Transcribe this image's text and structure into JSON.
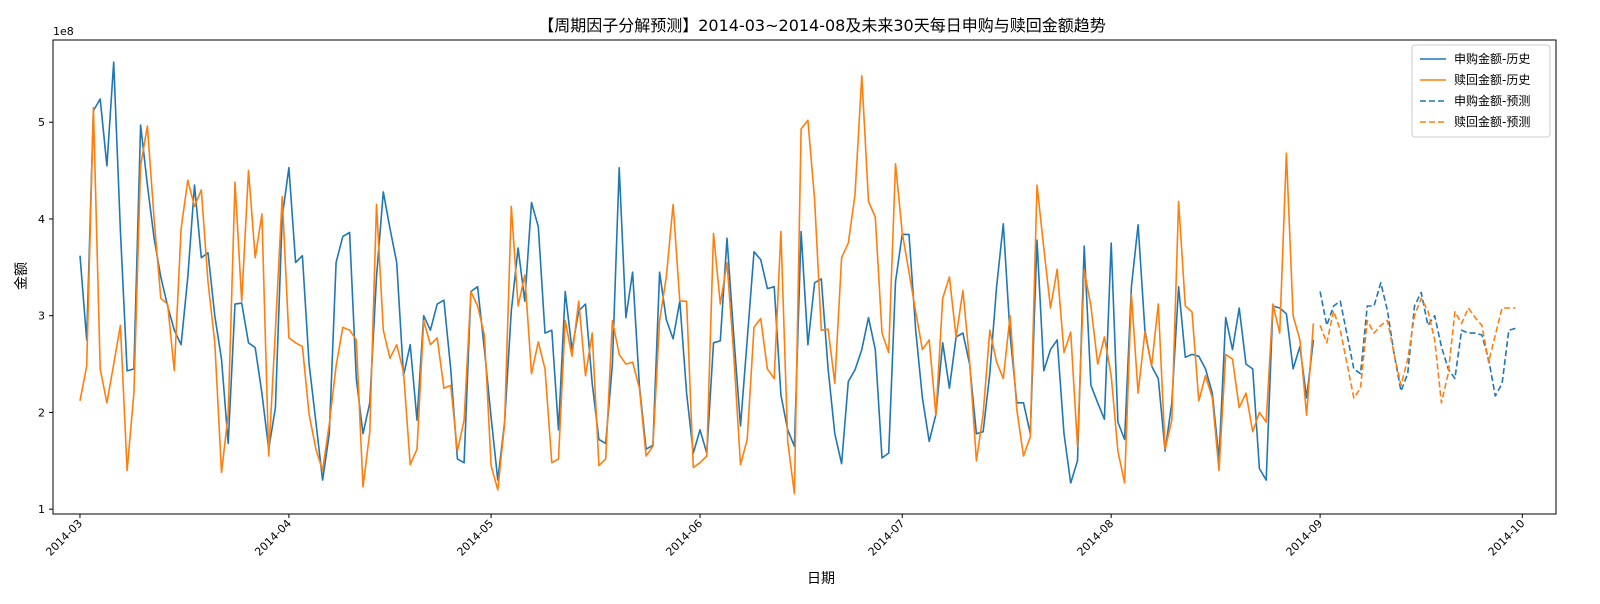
{
  "chart_data": {
    "type": "line",
    "title": "【周期因子分解预测】2014-03~2014-08及未来30天每日申购与赎回金额趋势",
    "xlabel": "日期",
    "ylabel": "金额",
    "y_offset_label": "1e8",
    "xlim": [
      "2014-02-25",
      "2014-10-06"
    ],
    "ylim": [
      0.95,
      5.85
    ],
    "y_ticks": [
      1,
      2,
      3,
      4,
      5
    ],
    "x_ticks": [
      "2014-03-01",
      "2014-04-01",
      "2014-05-01",
      "2014-06-01",
      "2014-07-01",
      "2014-08-01",
      "2014-09-01",
      "2014-10-01"
    ],
    "grid": false,
    "legend_position": "top-right",
    "colors": {
      "purchase": "#1f77b4",
      "redeem": "#ff7f0e"
    },
    "series": [
      {
        "name": "申购金额-历史",
        "style": "solid",
        "color": "#1f77b4",
        "start_date": "2014-03-01",
        "values": [
          3.62,
          2.75,
          5.12,
          5.24,
          4.55,
          5.62,
          3.88,
          2.43,
          2.45,
          4.97,
          4.35,
          3.8,
          3.4,
          3.1,
          2.85,
          2.7,
          3.4,
          4.35,
          3.6,
          3.65,
          3.0,
          2.55,
          1.68,
          3.12,
          3.13,
          2.72,
          2.67,
          2.2,
          1.62,
          2.05,
          4.02,
          4.53,
          3.55,
          3.62,
          2.5,
          1.9,
          1.3,
          1.78,
          3.55,
          3.82,
          3.86,
          2.35,
          1.78,
          2.1,
          3.4,
          4.28,
          3.9,
          3.55,
          2.38,
          2.7,
          1.92,
          3.0,
          2.85,
          3.12,
          3.16,
          2.45,
          1.52,
          1.48,
          3.25,
          3.3,
          2.65,
          1.95,
          1.3,
          1.9,
          3.05,
          3.7,
          3.15,
          4.17,
          3.92,
          2.82,
          2.85,
          1.82,
          3.25,
          2.65,
          3.05,
          3.12,
          2.3,
          1.72,
          1.68,
          2.5,
          4.53,
          2.98,
          3.45,
          2.28,
          1.62,
          1.66,
          3.45,
          2.96,
          2.76,
          3.15,
          2.2,
          1.58,
          1.82,
          1.58,
          2.72,
          2.74,
          3.8,
          2.8,
          1.86,
          2.75,
          3.66,
          3.58,
          3.28,
          3.3,
          2.18,
          1.82,
          1.65,
          3.87,
          2.7,
          3.34,
          3.38,
          2.45,
          1.78,
          1.47,
          2.32,
          2.44,
          2.65,
          2.98,
          2.65,
          1.53,
          1.58,
          3.35,
          3.84,
          3.84,
          2.85,
          2.15,
          1.7,
          1.98,
          2.72,
          2.25,
          2.78,
          2.82,
          2.5,
          1.78,
          1.8,
          2.4,
          3.3,
          3.95,
          2.8,
          2.1,
          2.1,
          1.78,
          3.78,
          2.43,
          2.65,
          2.75,
          1.78,
          1.27,
          1.5,
          3.72,
          2.28,
          2.1,
          1.93,
          3.75,
          1.9,
          1.72,
          3.3,
          3.94,
          2.85,
          2.48,
          2.35,
          1.6,
          2.1,
          3.3,
          2.57,
          2.6,
          2.58,
          2.45,
          2.2,
          1.52,
          2.98,
          2.65,
          3.08,
          2.5,
          2.45,
          1.42,
          1.3,
          3.1,
          3.08,
          3.02,
          2.45,
          2.68,
          2.15,
          2.75
        ]
      },
      {
        "name": "赎回金额-历史",
        "style": "solid",
        "color": "#ff7f0e",
        "start_date": "2014-03-01",
        "values": [
          2.12,
          2.48,
          5.15,
          2.45,
          2.1,
          2.5,
          2.9,
          1.4,
          2.2,
          4.55,
          4.96,
          4.0,
          3.18,
          3.12,
          2.43,
          3.9,
          4.4,
          4.13,
          4.3,
          3.35,
          2.72,
          1.38,
          1.98,
          4.38,
          3.15,
          4.5,
          3.6,
          4.05,
          1.55,
          2.85,
          4.23,
          2.77,
          2.72,
          2.68,
          1.98,
          1.62,
          1.4,
          1.88,
          2.48,
          2.88,
          2.85,
          2.75,
          1.23,
          1.8,
          4.15,
          2.85,
          2.56,
          2.7,
          2.42,
          1.46,
          1.62,
          2.95,
          2.7,
          2.77,
          2.25,
          2.28,
          1.6,
          1.92,
          3.25,
          3.1,
          2.8,
          1.45,
          1.2,
          1.88,
          4.13,
          3.1,
          3.42,
          2.4,
          2.73,
          2.45,
          1.48,
          1.52,
          2.95,
          2.58,
          3.15,
          2.38,
          2.82,
          1.45,
          1.52,
          2.95,
          2.6,
          2.5,
          2.52,
          2.25,
          1.55,
          1.65,
          2.95,
          3.4,
          4.15,
          3.15,
          3.15,
          1.43,
          1.48,
          1.55,
          3.85,
          3.12,
          3.55,
          2.6,
          1.46,
          1.72,
          2.88,
          2.97,
          2.45,
          2.35,
          3.87,
          1.7,
          1.16,
          4.93,
          5.02,
          4.2,
          2.85,
          2.86,
          2.3,
          3.6,
          3.75,
          4.25,
          5.48,
          4.18,
          4.02,
          2.82,
          2.62,
          4.57,
          3.86,
          3.45,
          3.04,
          2.65,
          2.75,
          1.97,
          3.18,
          3.4,
          2.78,
          3.26,
          2.53,
          1.5,
          1.98,
          2.85,
          2.52,
          2.35,
          3.0,
          2.03,
          1.55,
          1.75,
          4.35,
          3.7,
          3.08,
          3.48,
          2.62,
          2.83,
          1.65,
          3.47,
          3.1,
          2.5,
          2.78,
          2.38,
          1.6,
          1.27,
          3.22,
          2.2,
          2.83,
          2.48,
          3.12,
          1.62,
          1.92,
          4.18,
          3.1,
          3.04,
          2.12,
          2.38,
          2.15,
          1.4,
          2.6,
          2.55,
          2.05,
          2.2,
          1.8,
          2.0,
          1.9,
          3.12,
          2.82,
          4.68,
          3.0,
          2.75,
          1.97,
          2.92
        ]
      },
      {
        "name": "申购金额-预测",
        "style": "dashed",
        "color": "#1f77b4",
        "start_date": "2014-09-01",
        "values": [
          3.25,
          2.9,
          3.1,
          3.15,
          2.8,
          2.45,
          2.4,
          3.1,
          3.1,
          3.34,
          3.05,
          2.6,
          2.22,
          2.4,
          3.1,
          3.24,
          2.9,
          3.0,
          2.68,
          2.45,
          2.35,
          2.85,
          2.82,
          2.82,
          2.8,
          2.55,
          2.17,
          2.3,
          2.85,
          2.87
        ]
      },
      {
        "name": "赎回金额-预测",
        "style": "dashed",
        "color": "#ff7f0e",
        "start_date": "2014-09-01",
        "values": [
          2.9,
          2.72,
          3.05,
          2.85,
          2.5,
          2.15,
          2.25,
          2.95,
          2.82,
          2.9,
          2.95,
          2.6,
          2.28,
          2.55,
          3.0,
          3.18,
          3.05,
          2.75,
          2.1,
          2.4,
          3.04,
          2.92,
          3.08,
          2.98,
          2.9,
          2.52,
          2.8,
          3.08,
          3.08,
          3.08
        ]
      }
    ]
  }
}
